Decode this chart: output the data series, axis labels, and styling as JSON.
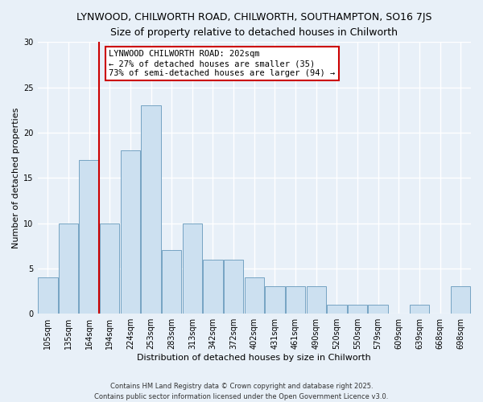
{
  "title1": "LYNWOOD, CHILWORTH ROAD, CHILWORTH, SOUTHAMPTON, SO16 7JS",
  "title2": "Size of property relative to detached houses in Chilworth",
  "xlabel": "Distribution of detached houses by size in Chilworth",
  "ylabel": "Number of detached properties",
  "categories": [
    "105sqm",
    "135sqm",
    "164sqm",
    "194sqm",
    "224sqm",
    "253sqm",
    "283sqm",
    "313sqm",
    "342sqm",
    "372sqm",
    "402sqm",
    "431sqm",
    "461sqm",
    "490sqm",
    "520sqm",
    "550sqm",
    "579sqm",
    "609sqm",
    "639sqm",
    "668sqm",
    "698sqm"
  ],
  "values": [
    4,
    10,
    17,
    10,
    18,
    23,
    7,
    10,
    6,
    6,
    4,
    3,
    3,
    3,
    1,
    1,
    1,
    0,
    1,
    0,
    3
  ],
  "bar_color": "#cce0f0",
  "bar_edge_color": "#6699bb",
  "bar_edge_width": 0.6,
  "vline_x_index": 3,
  "vline_color": "#cc0000",
  "annotation_line1": "LYNWOOD CHILWORTH ROAD: 202sqm",
  "annotation_line2": "← 27% of detached houses are smaller (35)",
  "annotation_line3": "73% of semi-detached houses are larger (94) →",
  "annotation_box_color": "#ffffff",
  "annotation_box_edge_color": "#cc0000",
  "ylim": [
    0,
    30
  ],
  "yticks": [
    0,
    5,
    10,
    15,
    20,
    25,
    30
  ],
  "footer": "Contains HM Land Registry data © Crown copyright and database right 2025.\nContains public sector information licensed under the Open Government Licence v3.0.",
  "bg_color": "#e8f0f8",
  "grid_color": "#ffffff",
  "title_fontsize": 9,
  "axis_label_fontsize": 8,
  "tick_fontsize": 7,
  "annotation_fontsize": 7.5,
  "footer_fontsize": 6
}
